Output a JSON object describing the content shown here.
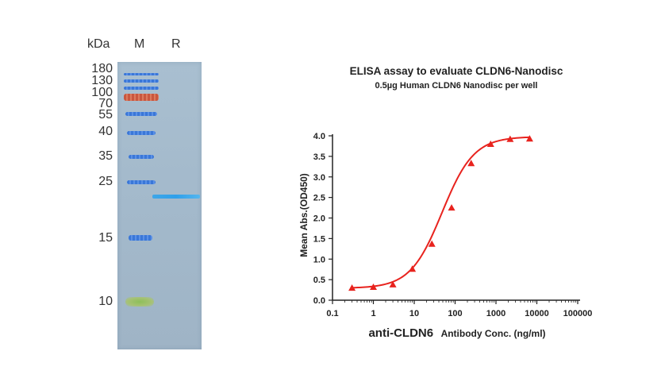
{
  "gel": {
    "unit_label": "kDa",
    "lane_labels": [
      "M",
      "R"
    ],
    "marker_weights": [
      "180",
      "130",
      "100",
      "70",
      "55",
      "40",
      "35",
      "25",
      "15",
      "10"
    ]
  },
  "chart_data": {
    "type": "scatter",
    "title": "ELISA assay to evaluate CLDN6-Nanodisc",
    "subtitle": "0.5µg Human CLDN6 Nanodisc per well",
    "xlabel_bold": "anti-CLDN6",
    "xlabel_rest": "Antibody Conc. (ng/ml)",
    "ylabel": "Mean Abs.(OD450)",
    "x_scale": "log",
    "xlim": [
      0.1,
      100000
    ],
    "ylim": [
      0,
      4
    ],
    "x_tick_labels": [
      "0.1",
      "1",
      "10",
      "100",
      "1000",
      "10000",
      "100000"
    ],
    "y_tick_labels": [
      "0.0",
      "0.5",
      "1.0",
      "1.5",
      "2.0",
      "2.5",
      "3.0",
      "3.5",
      "4.0"
    ],
    "grid": false,
    "series_color": "#e8231e",
    "x": [
      0.3,
      1,
      3,
      9,
      27,
      82,
      247,
      741,
      2222,
      6667
    ],
    "y": [
      0.3,
      0.32,
      0.38,
      0.76,
      1.37,
      2.25,
      3.33,
      3.8,
      3.92,
      3.93
    ]
  }
}
